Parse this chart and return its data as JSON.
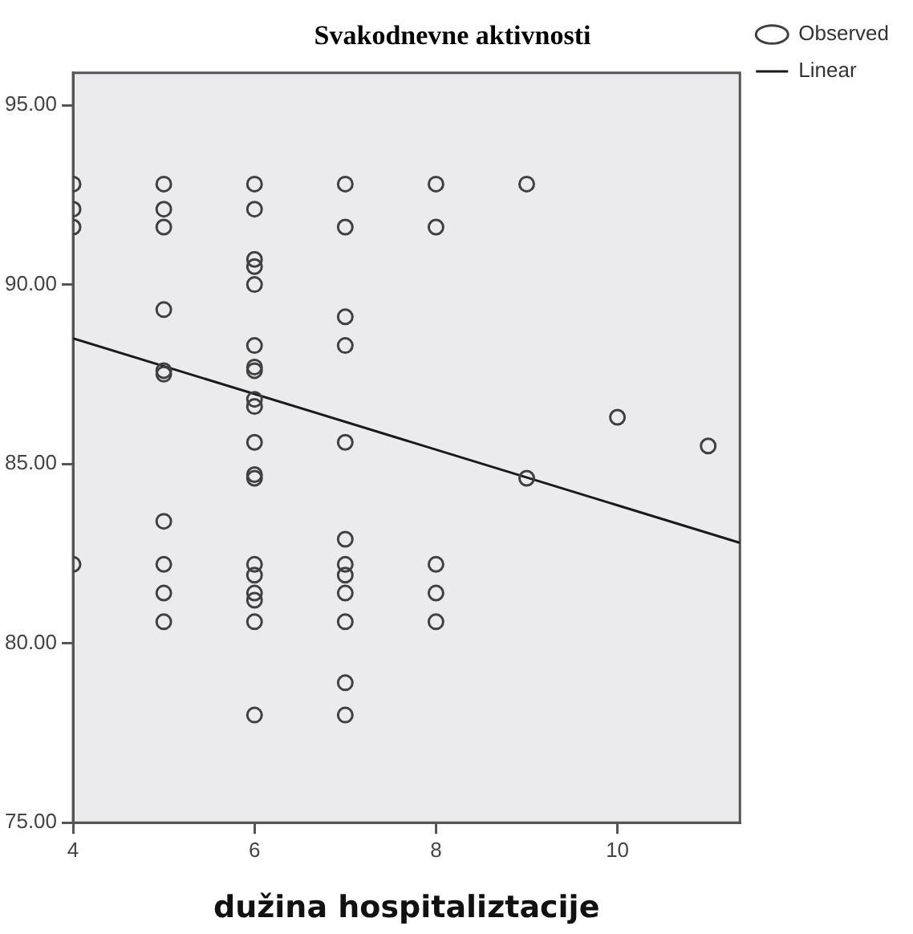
{
  "chart_data": {
    "type": "scatter",
    "title": "Svakodnevne aktivnosti",
    "xlabel": "dužina hospitaliztacije",
    "xlim": [
      4,
      11.35
    ],
    "xticks": [
      4,
      6,
      8,
      10
    ],
    "ylim": [
      75,
      95.9
    ],
    "yticks": [
      {
        "value": 75,
        "label": "75.00"
      },
      {
        "value": 80,
        "label": "80.00"
      },
      {
        "value": 85,
        "label": "85.00"
      },
      {
        "value": 90,
        "label": "90.00"
      },
      {
        "value": 95,
        "label": "95.00"
      }
    ],
    "grid": false,
    "legend": "top right",
    "series": [
      {
        "name": "Observed",
        "marker": "circle",
        "color": "#404040",
        "x": [
          4,
          4,
          4,
          4,
          5,
          5,
          5,
          5,
          5,
          5,
          5,
          5,
          5,
          5,
          6,
          6,
          6,
          6,
          6,
          6,
          6,
          6,
          6,
          6,
          6,
          6,
          6,
          6,
          6,
          6,
          6,
          6,
          6,
          7,
          7,
          7,
          7,
          7,
          7,
          7,
          7,
          7,
          7,
          7,
          7,
          8,
          8,
          8,
          8,
          8,
          9,
          9,
          10,
          11
        ],
        "values": [
          92.8,
          92.1,
          91.6,
          82.2,
          92.8,
          92.1,
          91.6,
          89.3,
          87.6,
          87.5,
          83.4,
          82.2,
          81.4,
          80.6,
          92.8,
          92.1,
          90.7,
          90.5,
          90.0,
          88.3,
          87.7,
          87.6,
          86.8,
          86.6,
          85.6,
          84.7,
          84.6,
          82.2,
          81.9,
          81.4,
          81.2,
          80.6,
          78.0,
          92.8,
          91.6,
          89.1,
          88.3,
          85.6,
          82.9,
          82.2,
          81.9,
          81.4,
          80.6,
          78.9,
          78.0,
          92.8,
          91.6,
          82.2,
          81.4,
          80.6,
          92.8,
          84.6,
          86.3,
          85.5
        ]
      },
      {
        "name": "Linear",
        "type": "line",
        "marker": "none",
        "color": "#1a1a1a",
        "line_style": "solid",
        "x": [
          4,
          11.35
        ],
        "values": [
          88.5,
          82.8
        ]
      }
    ]
  }
}
